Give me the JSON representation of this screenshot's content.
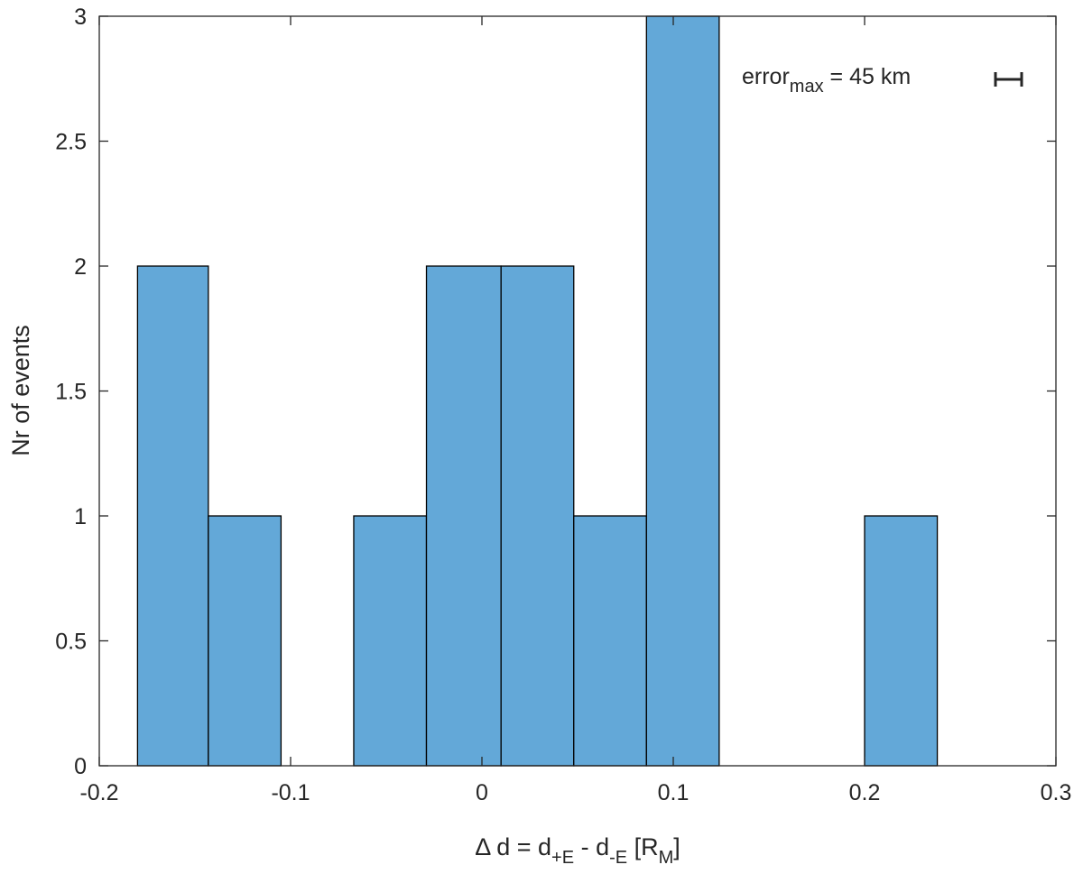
{
  "chart_data": {
    "type": "bar",
    "subtype": "histogram",
    "bin_edges": [
      -0.18,
      -0.143,
      -0.105,
      -0.067,
      -0.029,
      0.01,
      0.048,
      0.086,
      0.124,
      0.162,
      0.2,
      0.238
    ],
    "values": [
      2,
      1,
      0,
      1,
      2,
      2,
      1,
      3,
      0,
      0,
      1
    ],
    "xlim": [
      -0.2,
      0.3
    ],
    "ylim": [
      0,
      3
    ],
    "xticks": [
      -0.2,
      -0.1,
      0,
      0.1,
      0.2,
      0.3
    ],
    "xtick_labels": [
      "-0.2",
      "-0.1",
      "0",
      "0.1",
      "0.2",
      "0.3"
    ],
    "yticks": [
      0,
      0.5,
      1,
      1.5,
      2,
      2.5,
      3
    ],
    "ytick_labels": [
      "0",
      "0.5",
      "1",
      "1.5",
      "2",
      "2.5",
      "3"
    ],
    "ylabel": "Nr of events",
    "xlabel": {
      "delta": "Δ",
      "part1": " d = d",
      "sub1": "+E",
      "part2": " - d",
      "sub2": "-E",
      "part3": " [R",
      "sub3": "M",
      "part4": "]"
    },
    "annotation": {
      "base": "error",
      "sub": "max",
      "rest": " = 45 km"
    },
    "grid": false,
    "colors": {
      "bar_fill": "#63a8d8",
      "bar_edge": "#000000",
      "axis": "#262626"
    }
  }
}
